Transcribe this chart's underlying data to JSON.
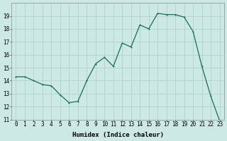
{
  "x": [
    0,
    1,
    2,
    3,
    4,
    5,
    6,
    7,
    8,
    9,
    10,
    11,
    12,
    13,
    14,
    15,
    16,
    17,
    18,
    19,
    20,
    21,
    22,
    23
  ],
  "y": [
    14.3,
    14.3,
    14.0,
    13.7,
    13.6,
    12.9,
    12.3,
    12.4,
    14.0,
    15.3,
    15.8,
    15.1,
    16.9,
    16.6,
    18.3,
    18.0,
    19.2,
    19.1,
    19.1,
    18.9,
    17.8,
    15.1,
    12.8,
    10.9
  ],
  "line_color": "#1a6b5a",
  "marker_color": "#1a6b5a",
  "bg_color": "#cce9e5",
  "grid_color": "#aacfcc",
  "xlabel": "Humidex (Indice chaleur)",
  "ylim": [
    11,
    20
  ],
  "xlim": [
    -0.5,
    23.5
  ],
  "yticks": [
    11,
    12,
    13,
    14,
    15,
    16,
    17,
    18,
    19
  ],
  "xticks": [
    0,
    1,
    2,
    3,
    4,
    5,
    6,
    7,
    8,
    9,
    10,
    11,
    12,
    13,
    14,
    15,
    16,
    17,
    18,
    19,
    20,
    21,
    22,
    23
  ],
  "xlabel_fontsize": 6.5,
  "tick_fontsize": 5.5,
  "linewidth": 0.9,
  "markersize": 2.0
}
